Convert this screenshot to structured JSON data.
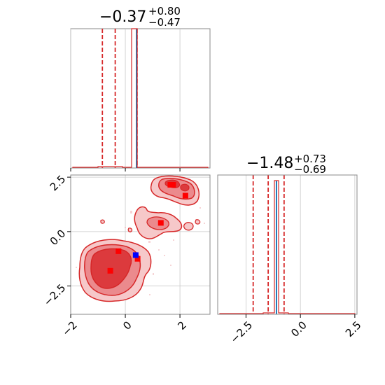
{
  "chart_data": {
    "type": "corner",
    "parameters": [
      {
        "title": {
          "median": "−0.37",
          "plus": "+0.80",
          "minus": "−0.47"
        },
        "quantiles": [
          -0.84,
          -0.37,
          0.43
        ],
        "truth_value": 0.41,
        "range": [
          -2.0,
          3.1
        ]
      },
      {
        "title": {
          "median": "−1.48",
          "plus": "+0.73",
          "minus": "−0.69"
        },
        "quantiles": [
          -2.17,
          -1.48,
          -0.75
        ],
        "truth_value": -1.1,
        "range": [
          -3.8,
          2.6
        ]
      }
    ],
    "ticks": {
      "x_bottom_left": [
        "−2",
        "0",
        "2"
      ],
      "y_left": [
        "2.5",
        "0.0",
        "−2.5"
      ],
      "x_bottom_right": [
        "−2.5",
        "0.0",
        "2.5"
      ]
    },
    "tick_values": {
      "x_bottom_left": [
        -2,
        0,
        2
      ],
      "y_left": [
        2.5,
        0.0,
        -2.5
      ],
      "x_bottom_right": [
        -2.5,
        0.0,
        2.5
      ]
    },
    "scatter_points": [
      {
        "x": 1.3,
        "y": 0.4,
        "color": "red"
      },
      {
        "x": 2.2,
        "y": 1.65,
        "color": "red"
      },
      {
        "x": 1.65,
        "y": 2.15,
        "color": "red"
      },
      {
        "x": 1.75,
        "y": 2.15,
        "color": "red"
      },
      {
        "x": -0.25,
        "y": -0.9,
        "color": "red"
      },
      {
        "x": -0.55,
        "y": -1.8,
        "color": "red"
      },
      {
        "x": 0.45,
        "y": -1.25,
        "color": "red"
      },
      {
        "x": 0.38,
        "y": -1.08,
        "color": "blue"
      }
    ],
    "colors": {
      "contour": "#d62728",
      "fill_light": "#f6c8c9",
      "fill_mid": "#eb8a8d",
      "fill_dark": "#dc3a3d",
      "truth": "#1f77b4",
      "quantile": "#d62728",
      "grid": "#c8c8c8",
      "frame": "#888888"
    },
    "grid": true
  }
}
